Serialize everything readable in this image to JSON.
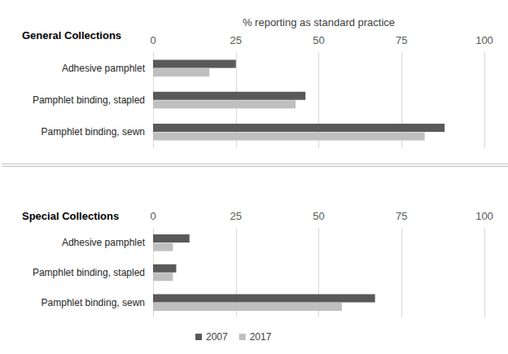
{
  "chart_data": [
    {
      "type": "bar",
      "title": "General Collections",
      "xlabel": "% reporting as standard practice",
      "orientation": "horizontal",
      "grid": true,
      "legend": "bottom",
      "categories": [
        "Adhesive pamphlet",
        "Pamphlet binding, stapled",
        "Pamphlet binding, sewn"
      ],
      "series": [
        {
          "name": "2007",
          "color": "#595959",
          "values": [
            25,
            46,
            88
          ]
        },
        {
          "name": "2017",
          "color": "#bfbfbf",
          "values": [
            17,
            43,
            82
          ]
        }
      ],
      "xlim": [
        0,
        100
      ],
      "xticks": [
        0,
        25,
        50,
        75,
        100
      ]
    },
    {
      "type": "bar",
      "title": "Special Collections",
      "orientation": "horizontal",
      "grid": true,
      "legend": "bottom",
      "categories": [
        "Adhesive pamphlet",
        "Pamphlet binding, stapled",
        "Pamphlet binding, sewn"
      ],
      "series": [
        {
          "name": "2007",
          "color": "#595959",
          "values": [
            11,
            7,
            67
          ]
        },
        {
          "name": "2017",
          "color": "#bfbfbf",
          "values": [
            6,
            6,
            57
          ]
        }
      ],
      "xlim": [
        0,
        100
      ],
      "xticks": [
        0,
        25,
        50,
        75,
        100
      ]
    }
  ]
}
